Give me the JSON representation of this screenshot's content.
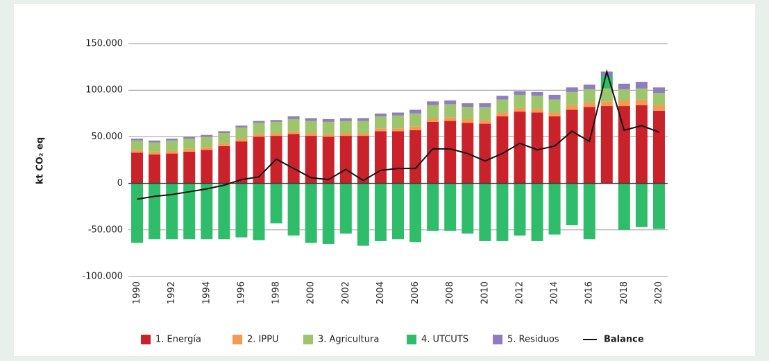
{
  "chart_data": {
    "type": "stacked-bar-line",
    "y_label": "kt CO₂ eq",
    "categories": [
      "1990",
      null,
      "1992",
      null,
      "1994",
      null,
      "1996",
      null,
      "1998",
      null,
      "2000",
      null,
      "2002",
      null,
      "2004",
      null,
      "2006",
      null,
      "2008",
      null,
      "2010",
      null,
      "2012",
      null,
      "2014",
      null,
      "2016",
      null,
      "2018",
      null,
      "2020"
    ],
    "series": [
      {
        "name": "1. Energía",
        "color": "#c9222b",
        "values": [
          33000,
          31000,
          32000,
          34000,
          36000,
          40000,
          45000,
          50000,
          51000,
          53000,
          51000,
          50000,
          51000,
          51000,
          56000,
          56000,
          57000,
          66000,
          67000,
          65000,
          64000,
          72000,
          77000,
          76000,
          72000,
          79000,
          82000,
          83000,
          83000,
          84000,
          78000
        ]
      },
      {
        "name": "2. IPPU",
        "color": "#f59a52",
        "values": [
          3000,
          3000,
          3000,
          3000,
          3000,
          3000,
          3000,
          3000,
          3000,
          3000,
          3000,
          3000,
          3000,
          3000,
          3000,
          3000,
          4000,
          4000,
          4000,
          4000,
          4000,
          4000,
          4000,
          4000,
          4000,
          5000,
          5000,
          5000,
          6000,
          6000,
          6000
        ]
      },
      {
        "name": "3. Agricultura",
        "color": "#9dc56b",
        "values": [
          10000,
          10000,
          11000,
          11000,
          11000,
          11000,
          12000,
          12000,
          12000,
          13000,
          13000,
          13000,
          13000,
          13000,
          13000,
          14000,
          14000,
          14000,
          14000,
          13000,
          14000,
          14000,
          14000,
          14000,
          14000,
          14000,
          14000,
          14000,
          12000,
          12000,
          13000
        ]
      },
      {
        "name": "4. UTCUTS",
        "color": "#2fbd6b",
        "values": [
          -64000,
          -60000,
          -60000,
          -60000,
          -60000,
          -60000,
          -58000,
          -61000,
          -43000,
          -56000,
          -64000,
          -65000,
          -54000,
          -67000,
          -62000,
          -60000,
          -63000,
          -51000,
          -51000,
          -54000,
          -62000,
          -62000,
          -56000,
          -62000,
          -55000,
          -45000,
          -60000,
          13000,
          -50000,
          -47000,
          -49000
        ]
      },
      {
        "name": "5. Residuos",
        "color": "#8f7dc0",
        "values": [
          2000,
          2000,
          2000,
          2000,
          2000,
          2000,
          2000,
          2000,
          2000,
          3000,
          3000,
          3000,
          3000,
          3000,
          3000,
          3000,
          4000,
          4000,
          4000,
          4000,
          4000,
          4000,
          4000,
          4000,
          5000,
          5000,
          5000,
          5000,
          6000,
          7000,
          6000
        ]
      },
      {
        "name": "Balance",
        "type": "line",
        "color": "#111111",
        "values": [
          -17000,
          -14000,
          -12000,
          -9000,
          -6000,
          -2000,
          4000,
          7000,
          26000,
          16000,
          6000,
          4000,
          15000,
          3000,
          14000,
          16000,
          16000,
          37000,
          37000,
          32000,
          24000,
          32000,
          43000,
          36000,
          40000,
          56000,
          45000,
          120000,
          57000,
          62000,
          55000
        ]
      }
    ],
    "ylim": [
      -100000,
      150000
    ],
    "yticks": [
      {
        "value": -100000,
        "label": "-100.000"
      },
      {
        "value": -50000,
        "label": "-50.000"
      },
      0,
      {
        "value": 50000,
        "label": "50.000"
      },
      {
        "value": 100000,
        "label": "100.000"
      },
      {
        "value": 150000,
        "label": "150.000"
      }
    ],
    "grid": true
  }
}
